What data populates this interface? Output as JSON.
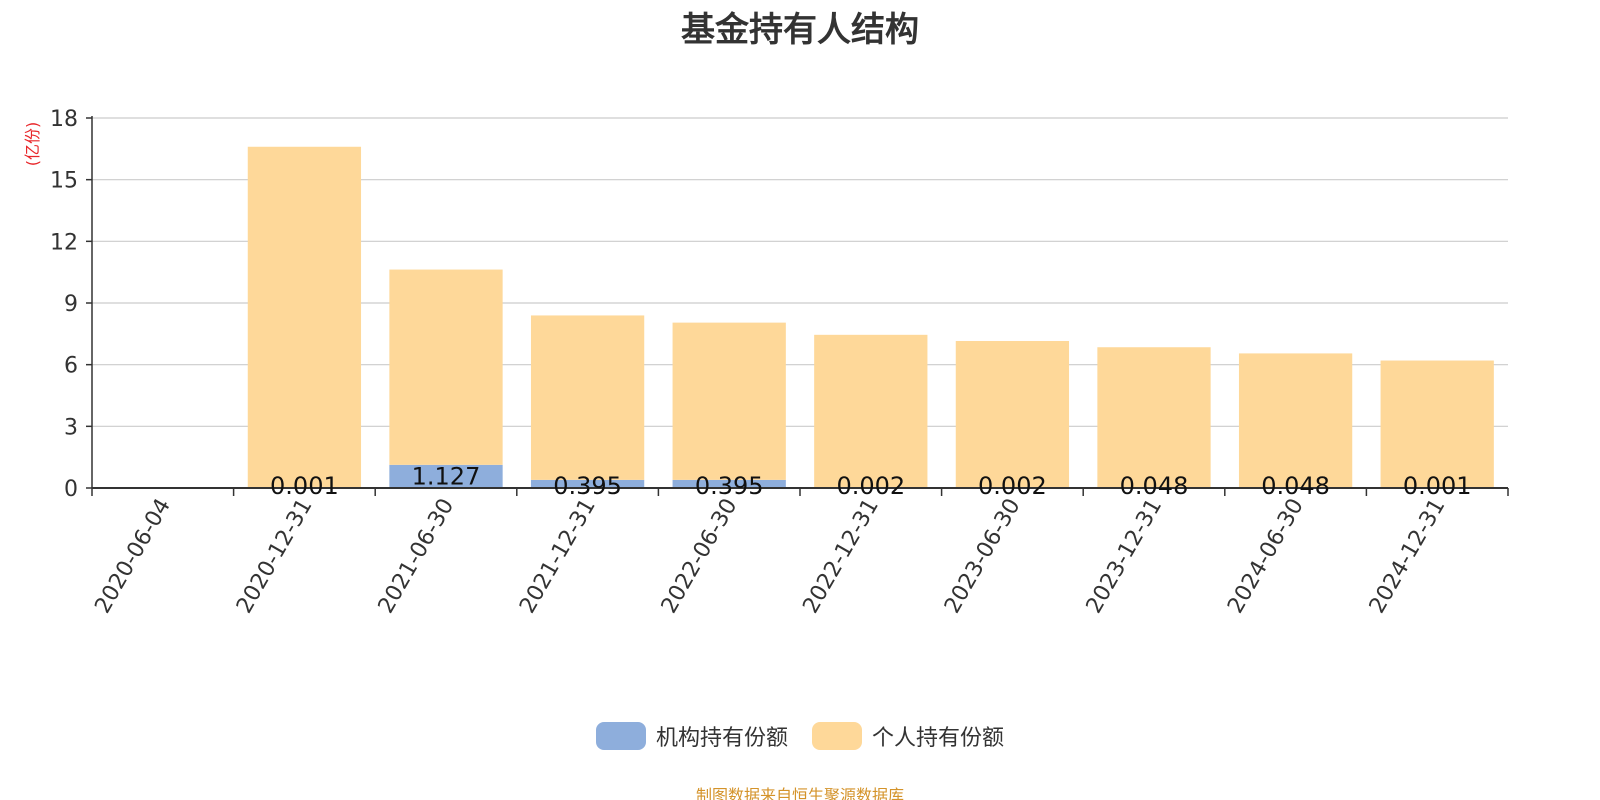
{
  "title": "基金持有人结构",
  "source_note": "制图数据来自恒生聚源数据库",
  "chart_data": {
    "type": "bar",
    "stacked": true,
    "title": "基金持有人结构",
    "ylabel": "(亿份)",
    "ylim": [
      0,
      18
    ],
    "yticks": [
      0,
      3,
      6,
      9,
      12,
      15,
      18
    ],
    "grid": true,
    "legend_position": "bottom",
    "categories": [
      "2020-06-04",
      "2020-12-31",
      "2021-06-30",
      "2021-12-31",
      "2022-06-30",
      "2022-12-31",
      "2023-06-30",
      "2023-12-31",
      "2024-06-30",
      "2024-12-31"
    ],
    "series": [
      {
        "name": "机构持有份额",
        "color": "#8eaedc",
        "values": [
          0,
          0.001,
          1.127,
          0.395,
          0.395,
          0.002,
          0.002,
          0.048,
          0.048,
          0.001
        ],
        "labels": [
          "",
          "0.001",
          "1.127",
          "0.395",
          "0.395",
          "0.002",
          "0.002",
          "0.048",
          "0.048",
          "0.001"
        ]
      },
      {
        "name": "个人持有份额",
        "color": "#fed899",
        "values": [
          0,
          16.6,
          9.5,
          8.0,
          7.65,
          7.45,
          7.15,
          6.8,
          6.5,
          6.2
        ]
      }
    ]
  }
}
